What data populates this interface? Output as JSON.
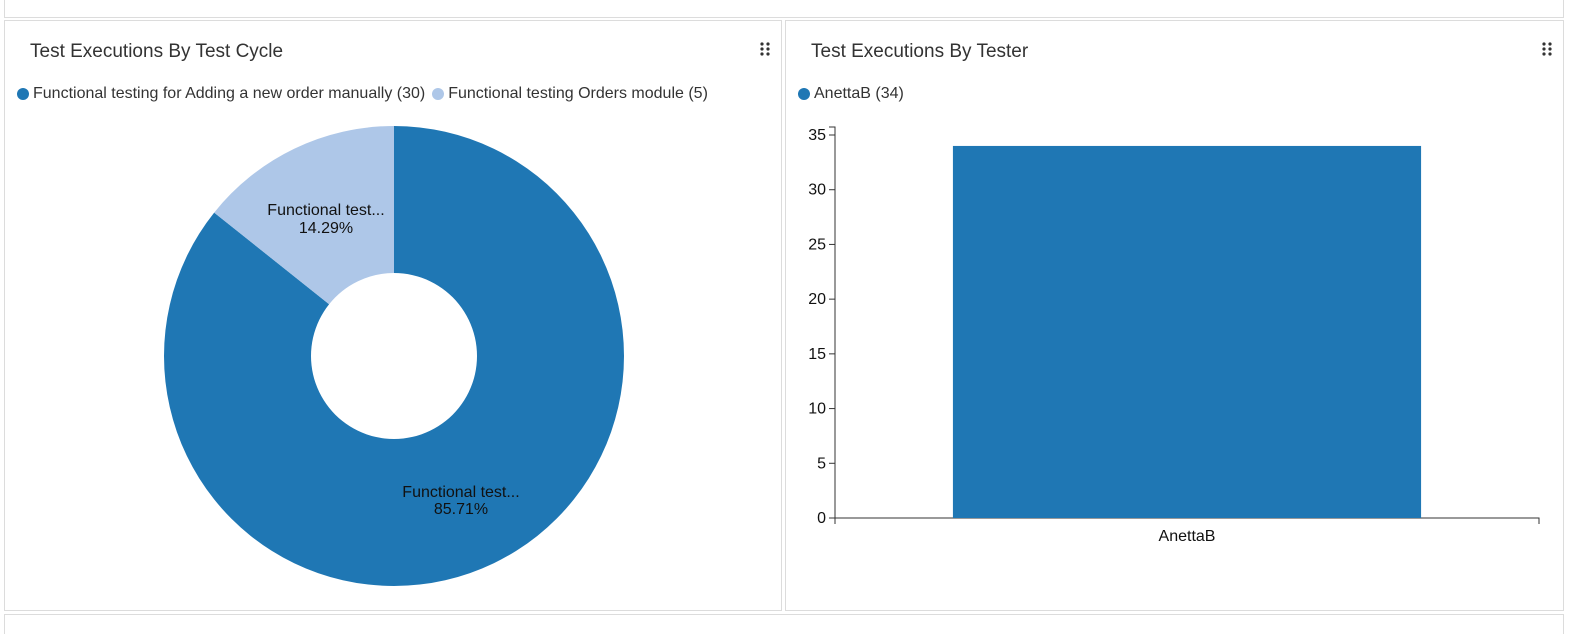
{
  "colors": {
    "series_dark": "#1f77b4",
    "series_light": "#aec7e8",
    "axis": "#333333"
  },
  "left_panel": {
    "title": "Test Executions By Test Cycle",
    "menu_icon": "drag-handle-icon",
    "legend": [
      {
        "label": "Functional testing for Adding a new order manually (30)",
        "color": "#1f77b4"
      },
      {
        "label": "Functional testing Orders module (5)",
        "color": "#aec7e8"
      }
    ]
  },
  "right_panel": {
    "title": "Test Executions By Tester",
    "menu_icon": "drag-handle-icon",
    "legend": [
      {
        "label": "AnettaB (34)",
        "color": "#1f77b4"
      }
    ]
  },
  "chart_data": [
    {
      "type": "pie",
      "title": "Test Executions By Test Cycle",
      "donut": true,
      "slices": [
        {
          "name": "Functional testing for Adding a new order manually",
          "value": 30,
          "percent": "85.71%",
          "label": "Functional test...",
          "color": "#1f77b4"
        },
        {
          "name": "Functional testing Orders module",
          "value": 5,
          "percent": "14.29%",
          "label": "Functional test...",
          "color": "#aec7e8"
        }
      ]
    },
    {
      "type": "bar",
      "title": "Test Executions By Tester",
      "categories": [
        "AnettaB"
      ],
      "values": [
        34
      ],
      "ylim": [
        0,
        35
      ],
      "yticks": [
        "0",
        "5",
        "10",
        "15",
        "20",
        "25",
        "30",
        "35"
      ],
      "color": "#1f77b4"
    }
  ]
}
